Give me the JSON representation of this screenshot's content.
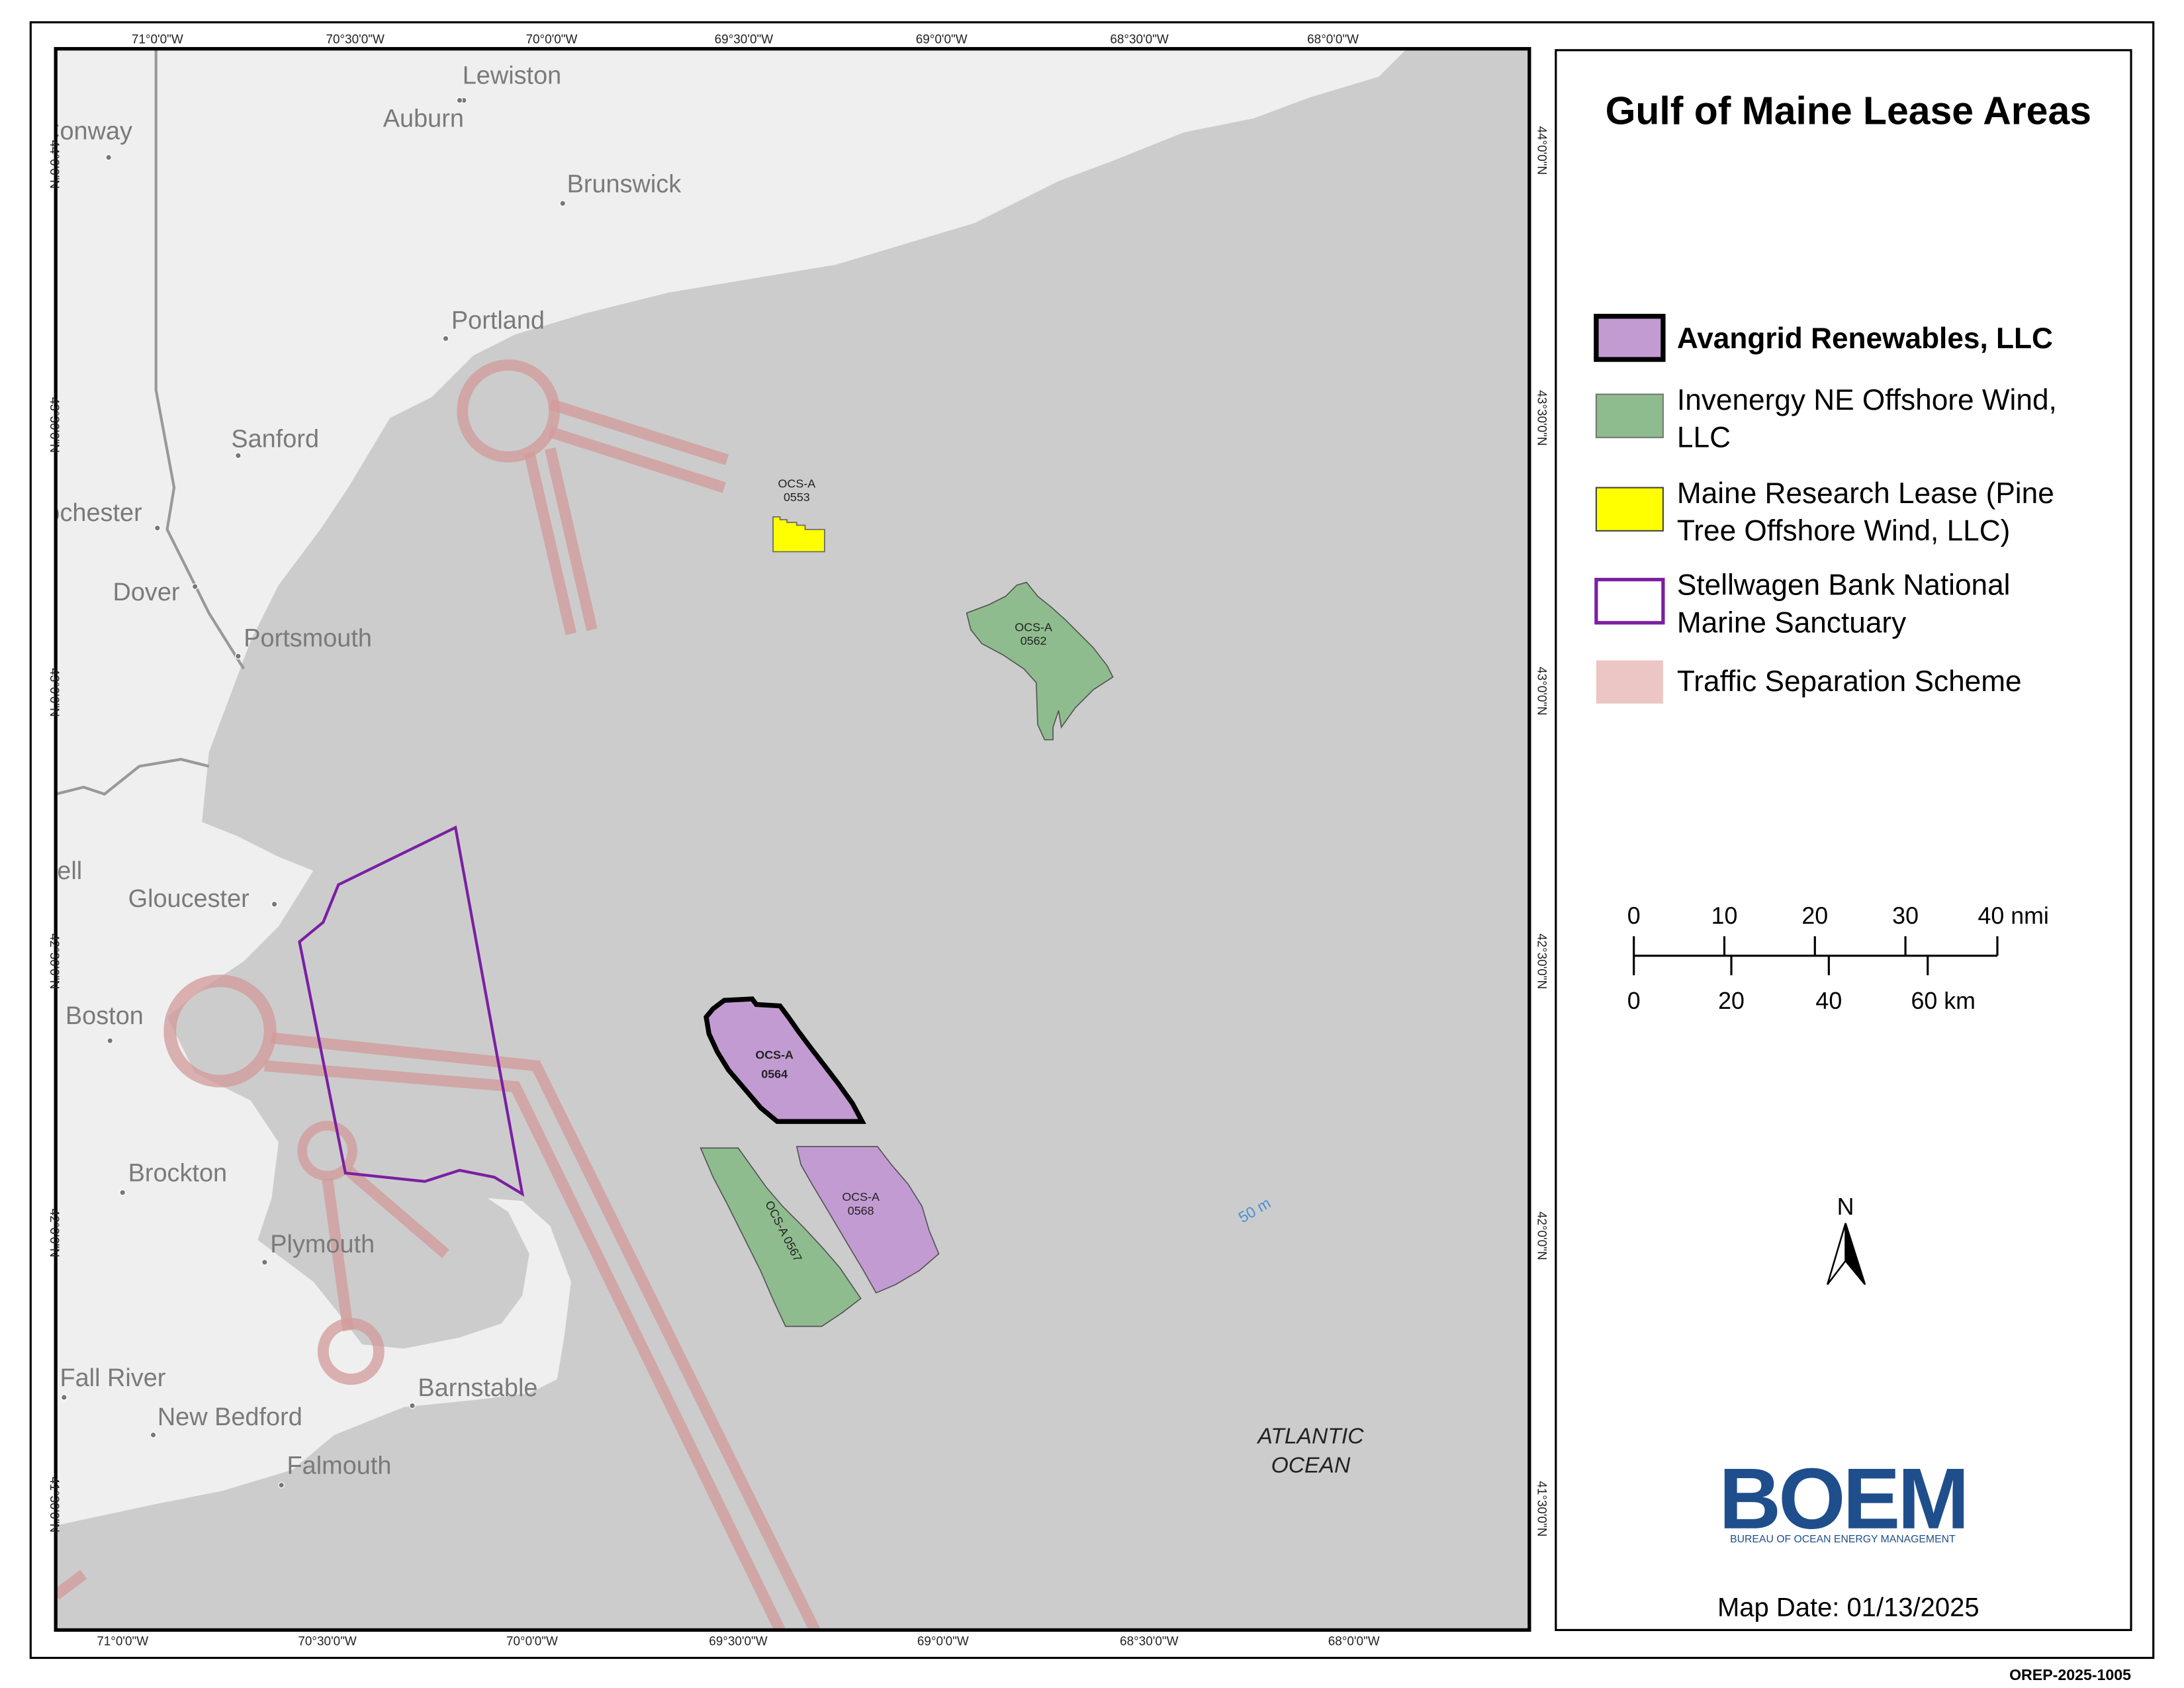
{
  "title": "Gulf of Maine Lease Areas",
  "legend": [
    {
      "lines": [
        "Avangrid Renewables, LLC"
      ]
    },
    {
      "lines": [
        "Invenergy NE Offshore Wind,",
        "LLC"
      ]
    },
    {
      "lines": [
        "Maine Research Lease (Pine",
        "Tree Offshore Wind, LLC)"
      ]
    },
    {
      "lines": [
        "Stellwagen Bank National",
        "Marine Sanctuary"
      ]
    },
    {
      "lines": [
        "Traffic Separation Scheme"
      ]
    }
  ],
  "graticule": {
    "top": [
      "71°0'0\"W",
      "70°30'0\"W",
      "70°0'0\"W",
      "69°30'0\"W",
      "69°0'0\"W",
      "68°30'0\"W",
      "68°0'0\"W"
    ],
    "bottom": [
      "71°0'0\"W",
      "70°30'0\"W",
      "70°0'0\"W",
      "69°30'0\"W",
      "69°0'0\"W",
      "68°30'0\"W",
      "68°0'0\"W"
    ],
    "left": [
      "44°0'0\"N",
      "43°30'0\"N",
      "43°0'0\"N",
      "42°30'0\"N",
      "42°0'0\"N",
      "41°30'0\"N"
    ],
    "right": [
      "44°0'0\"N",
      "43°30'0\"N",
      "43°0'0\"N",
      "42°30'0\"N",
      "42°0'0\"N",
      "41°30'0\"N"
    ]
  },
  "places": [
    "Lewiston",
    "Auburn",
    "Conway",
    "Brunswick",
    "Portland",
    "Sanford",
    "Rochester",
    "Dover",
    "Portsmouth",
    "Lowell",
    "Gloucester",
    "Boston",
    "Brockton",
    "Plymouth",
    "Fall River",
    "New Bedford",
    "Barnstable",
    "Falmouth"
  ],
  "leases": [
    {
      "lines": [
        "OCS-A",
        "0553"
      ]
    },
    {
      "lines": [
        "OCS-A",
        "0562"
      ]
    },
    {
      "lines": [
        "OCS-A",
        "0564"
      ]
    },
    {
      "lines": [
        "OCS-A 0567"
      ]
    },
    {
      "lines": [
        "OCS-A",
        "0568"
      ]
    }
  ],
  "ocean_label": [
    "ATLANTIC",
    "OCEAN"
  ],
  "depth_label": "50 m",
  "scale_bar": {
    "nmi": [
      "0",
      "10",
      "20",
      "30",
      "40 nmi"
    ],
    "km": [
      "0",
      "20",
      "40",
      "60 km"
    ]
  },
  "north": "N",
  "logo": {
    "name": "BOEM",
    "subtitle": "BUREAU OF OCEAN ENERGY MANAGEMENT"
  },
  "map_date": "Map Date: 01/13/2025",
  "doc_id": "OREP-2025-1005"
}
